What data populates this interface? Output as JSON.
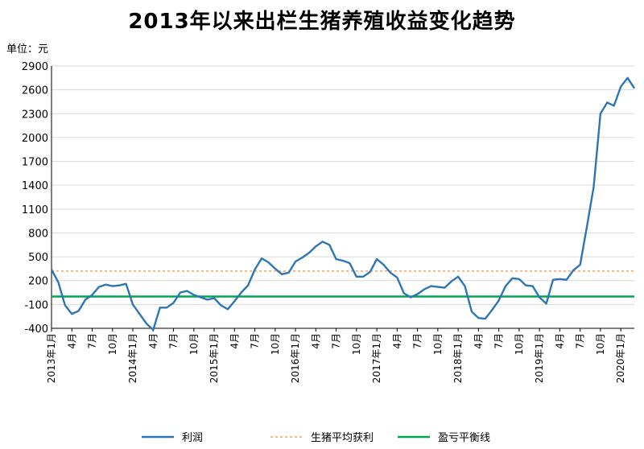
{
  "chart_data": {
    "type": "line",
    "title": "2013年以来出栏生猪养殖收益变化趋势",
    "unit_label": "单位：元",
    "ylim": [
      -400,
      2900
    ],
    "y_ticks": [
      -400,
      -100,
      200,
      500,
      800,
      1100,
      1400,
      1700,
      2000,
      2300,
      2600,
      2900
    ],
    "y_tick_labels": [
      "-400",
      "-100",
      "200",
      "500",
      "800",
      "1100",
      "1400",
      "1700",
      "2000",
      "2300",
      "2600",
      "2900"
    ],
    "x_tick_labels": [
      "2013年1月",
      "4月",
      "7月",
      "10月",
      "2014年1月",
      "4月",
      "7月",
      "10月",
      "2015年1月",
      "4月",
      "7月",
      "10月",
      "2016年1月",
      "4月",
      "7月",
      "10月",
      "2017年1月",
      "4月",
      "7月",
      "10月",
      "2018年1月",
      "4月",
      "7月",
      "10月",
      "2019年1月",
      "4月",
      "7月",
      "10月",
      "2020年1月"
    ],
    "grid": "horizontal",
    "legend_position": "bottom",
    "series": [
      {
        "name": "利润",
        "style": "solid",
        "color": "#2E75B6",
        "values": [
          340,
          180,
          -110,
          -220,
          -180,
          -40,
          20,
          120,
          150,
          130,
          140,
          160,
          -100,
          -220,
          -340,
          -420,
          -140,
          -140,
          -80,
          50,
          70,
          20,
          -10,
          -40,
          -20,
          -110,
          -160,
          -60,
          50,
          140,
          340,
          480,
          430,
          350,
          280,
          300,
          440,
          490,
          550,
          630,
          690,
          650,
          470,
          450,
          420,
          250,
          250,
          310,
          470,
          400,
          300,
          240,
          40,
          -10,
          30,
          90,
          130,
          120,
          110,
          190,
          250,
          130,
          -190,
          -270,
          -280,
          -170,
          -50,
          130,
          230,
          220,
          140,
          130,
          -10,
          -90,
          210,
          220,
          210,
          330,
          400,
          880,
          1380,
          2300,
          2440,
          2400,
          2640,
          2750,
          2620
        ],
        "note": ""
      },
      {
        "name": "生猪平均获利",
        "style": "dotted",
        "color": "#F4A460",
        "constant": 320
      },
      {
        "name": "盈亏平衡线",
        "style": "solid",
        "color": "#00A651",
        "constant": 0
      }
    ]
  }
}
